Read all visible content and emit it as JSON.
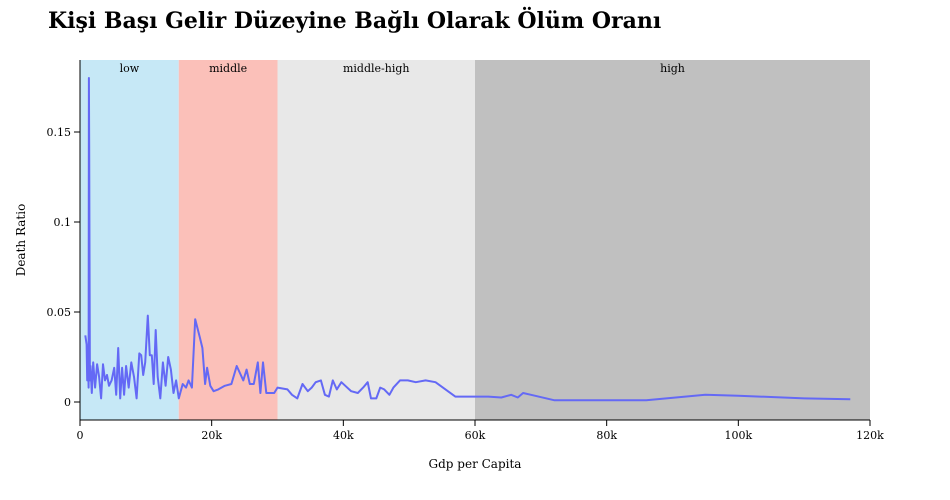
{
  "chart_data": {
    "type": "line",
    "title": "Kişi Başı Gelir Düzeyine Bağlı Olarak Ölüm Oranı",
    "xlabel": "Gdp per Capita",
    "ylabel": "Death Ratio",
    "xlim": [
      0,
      120000
    ],
    "ylim": [
      -0.01,
      0.19
    ],
    "x_ticks": [
      0,
      20000,
      40000,
      60000,
      80000,
      100000,
      120000
    ],
    "x_tick_labels": [
      "0",
      "20k",
      "40k",
      "60k",
      "80k",
      "100k",
      "120k"
    ],
    "y_ticks": [
      0,
      0.05,
      0.1,
      0.15
    ],
    "y_tick_labels": [
      "0",
      "0.05",
      "0.1",
      "0.15"
    ],
    "grid": false,
    "bands": [
      {
        "label": "low",
        "from": 0,
        "to": 15000,
        "color": "#c6e8f6"
      },
      {
        "label": "middle",
        "from": 15000,
        "to": 30000,
        "color": "#fbc0b9"
      },
      {
        "label": "middle-high",
        "from": 30000,
        "to": 60000,
        "color": "#e8e8e8"
      },
      {
        "label": "high",
        "from": 60000,
        "to": 120000,
        "color": "#c0c0c0"
      }
    ],
    "series": [
      {
        "color": "#6469f5",
        "points": [
          [
            800,
            0.037
          ],
          [
            1000,
            0.032
          ],
          [
            1100,
            0.012
          ],
          [
            1200,
            0.028
          ],
          [
            1300,
            0.008
          ],
          [
            1350,
            0.18
          ],
          [
            1400,
            0.14
          ],
          [
            1500,
            0.012
          ],
          [
            1600,
            0.02
          ],
          [
            1800,
            0.005
          ],
          [
            2000,
            0.022
          ],
          [
            2300,
            0.008
          ],
          [
            2600,
            0.021
          ],
          [
            2900,
            0.014
          ],
          [
            3200,
            0.002
          ],
          [
            3500,
            0.021
          ],
          [
            3800,
            0.012
          ],
          [
            4100,
            0.015
          ],
          [
            4400,
            0.009
          ],
          [
            4800,
            0.012
          ],
          [
            5200,
            0.019
          ],
          [
            5500,
            0.004
          ],
          [
            5800,
            0.03
          ],
          [
            6100,
            0.002
          ],
          [
            6400,
            0.019
          ],
          [
            6700,
            0.004
          ],
          [
            7000,
            0.02
          ],
          [
            7400,
            0.008
          ],
          [
            7800,
            0.022
          ],
          [
            8200,
            0.014
          ],
          [
            8600,
            0.002
          ],
          [
            9000,
            0.027
          ],
          [
            9300,
            0.026
          ],
          [
            9600,
            0.015
          ],
          [
            9900,
            0.022
          ],
          [
            10300,
            0.048
          ],
          [
            10600,
            0.026
          ],
          [
            10900,
            0.026
          ],
          [
            11200,
            0.01
          ],
          [
            11500,
            0.04
          ],
          [
            11800,
            0.014
          ],
          [
            12200,
            0.002
          ],
          [
            12600,
            0.022
          ],
          [
            13000,
            0.009
          ],
          [
            13400,
            0.025
          ],
          [
            13800,
            0.018
          ],
          [
            14200,
            0.005
          ],
          [
            14600,
            0.012
          ],
          [
            15000,
            0.002
          ],
          [
            15600,
            0.01
          ],
          [
            16100,
            0.008
          ],
          [
            16500,
            0.012
          ],
          [
            17000,
            0.008
          ],
          [
            17500,
            0.046
          ],
          [
            18200,
            0.036
          ],
          [
            18600,
            0.03
          ],
          [
            19000,
            0.01
          ],
          [
            19300,
            0.019
          ],
          [
            19800,
            0.009
          ],
          [
            20300,
            0.006
          ],
          [
            21000,
            0.007
          ],
          [
            22000,
            0.009
          ],
          [
            23000,
            0.01
          ],
          [
            23800,
            0.02
          ],
          [
            24800,
            0.012
          ],
          [
            25300,
            0.018
          ],
          [
            25800,
            0.01
          ],
          [
            26400,
            0.01
          ],
          [
            27000,
            0.022
          ],
          [
            27400,
            0.005
          ],
          [
            27800,
            0.022
          ],
          [
            28300,
            0.005
          ],
          [
            29500,
            0.005
          ],
          [
            30000,
            0.008
          ],
          [
            31500,
            0.007
          ],
          [
            32200,
            0.004
          ],
          [
            33000,
            0.002
          ],
          [
            33800,
            0.01
          ],
          [
            34600,
            0.006
          ],
          [
            35200,
            0.008
          ],
          [
            35800,
            0.011
          ],
          [
            36600,
            0.012
          ],
          [
            37200,
            0.004
          ],
          [
            37800,
            0.003
          ],
          [
            38400,
            0.012
          ],
          [
            39000,
            0.007
          ],
          [
            39700,
            0.011
          ],
          [
            40300,
            0.009
          ],
          [
            41200,
            0.006
          ],
          [
            42200,
            0.005
          ],
          [
            43000,
            0.008
          ],
          [
            43700,
            0.011
          ],
          [
            44200,
            0.002
          ],
          [
            45000,
            0.002
          ],
          [
            45600,
            0.008
          ],
          [
            46200,
            0.007
          ],
          [
            47000,
            0.004
          ],
          [
            47600,
            0.008
          ],
          [
            48600,
            0.012
          ],
          [
            49800,
            0.012
          ],
          [
            51000,
            0.011
          ],
          [
            52500,
            0.012
          ],
          [
            54000,
            0.011
          ],
          [
            57000,
            0.003
          ],
          [
            60000,
            0.003
          ],
          [
            62000,
            0.003
          ],
          [
            64000,
            0.0025
          ],
          [
            65500,
            0.004
          ],
          [
            66500,
            0.0025
          ],
          [
            67300,
            0.005
          ],
          [
            68500,
            0.004
          ],
          [
            72000,
            0.001
          ],
          [
            76000,
            0.001
          ],
          [
            80000,
            0.001
          ],
          [
            86000,
            0.001
          ],
          [
            95000,
            0.004
          ],
          [
            100000,
            0.0035
          ],
          [
            110000,
            0.002
          ],
          [
            117000,
            0.0015
          ]
        ]
      }
    ]
  }
}
